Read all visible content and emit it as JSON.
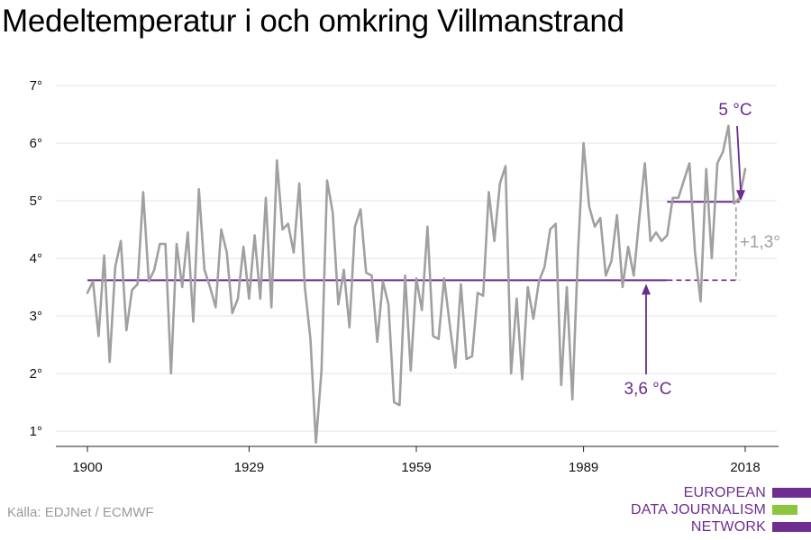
{
  "chart_data": {
    "type": "line",
    "title": "Medeltemperatur i och omkring Villmanstrand",
    "xlabel": "",
    "ylabel": "",
    "xlim": [
      1900,
      2018
    ],
    "ylim": [
      1,
      7
    ],
    "x_ticks": [
      "1900",
      "1929",
      "1959",
      "1989",
      "2018"
    ],
    "y_ticks": [
      "7°",
      "6°",
      "5°",
      "4°",
      "3°",
      "2°",
      "1°"
    ],
    "grid": true,
    "series": [
      {
        "color": "#a0a0a0",
        "x": [
          1900,
          1901,
          1902,
          1903,
          1904,
          1905,
          1906,
          1907,
          1908,
          1909,
          1910,
          1911,
          1912,
          1913,
          1914,
          1915,
          1916,
          1917,
          1918,
          1919,
          1920,
          1921,
          1922,
          1923,
          1924,
          1925,
          1926,
          1927,
          1928,
          1929,
          1930,
          1931,
          1932,
          1933,
          1934,
          1935,
          1936,
          1937,
          1938,
          1939,
          1940,
          1941,
          1942,
          1943,
          1944,
          1945,
          1946,
          1947,
          1948,
          1949,
          1950,
          1951,
          1952,
          1953,
          1954,
          1955,
          1956,
          1957,
          1958,
          1959,
          1960,
          1961,
          1962,
          1963,
          1964,
          1965,
          1966,
          1967,
          1968,
          1969,
          1970,
          1971,
          1972,
          1973,
          1974,
          1975,
          1976,
          1977,
          1978,
          1979,
          1980,
          1981,
          1982,
          1983,
          1984,
          1985,
          1986,
          1987,
          1988,
          1989,
          1990,
          1991,
          1992,
          1993,
          1994,
          1995,
          1996,
          1997,
          1998,
          1999,
          2000,
          2001,
          2002,
          2003,
          2004,
          2005,
          2006,
          2007,
          2008,
          2009,
          2010,
          2011,
          2012,
          2013,
          2014,
          2015,
          2016,
          2017,
          2018
        ],
        "values": [
          3.4,
          3.6,
          2.65,
          4.05,
          2.2,
          3.85,
          4.3,
          2.75,
          3.45,
          3.55,
          5.15,
          3.6,
          3.8,
          4.25,
          4.25,
          2.0,
          4.25,
          3.5,
          4.45,
          2.9,
          5.2,
          3.8,
          3.5,
          3.15,
          4.5,
          4.1,
          3.05,
          3.3,
          4.2,
          3.3,
          4.4,
          3.3,
          5.05,
          3.15,
          5.7,
          4.5,
          4.6,
          4.1,
          5.3,
          3.5,
          2.6,
          0.8,
          2.05,
          5.35,
          4.8,
          3.2,
          3.8,
          2.8,
          4.55,
          4.85,
          3.75,
          3.7,
          2.55,
          3.6,
          3.2,
          1.5,
          1.45,
          3.7,
          2.05,
          3.65,
          3.1,
          4.55,
          2.65,
          2.6,
          3.65,
          2.85,
          2.1,
          3.55,
          2.25,
          2.3,
          3.4,
          3.35,
          5.15,
          4.3,
          5.3,
          5.6,
          2.0,
          3.3,
          1.9,
          3.5,
          2.95,
          3.6,
          3.85,
          4.5,
          4.6,
          1.8,
          3.5,
          1.55,
          4.1,
          6.0,
          4.9,
          4.55,
          4.7,
          3.7,
          3.95,
          4.75,
          3.5,
          4.2,
          3.7,
          4.7,
          5.65,
          4.3,
          4.45,
          4.3,
          4.4,
          5.05,
          5.05,
          5.35,
          5.65,
          4.1,
          3.25,
          5.55,
          4.0,
          5.65,
          5.85,
          6.3,
          4.95,
          5.05,
          5.55
        ]
      }
    ],
    "reference_lines": [
      {
        "label": "3,6 °C",
        "value": 3.62,
        "x_start": 1900,
        "x_end": 2004,
        "dashed_x_end": 2017,
        "color": "#6a2c8e"
      },
      {
        "label": "5 °C",
        "value": 4.98,
        "x_start": 2004,
        "x_end": 2017,
        "color": "#6a2c8e"
      }
    ],
    "annotations": [
      {
        "text": "+1,3°",
        "color": "#a0a0a0"
      }
    ]
  },
  "source": "Källa: EDJNet / ECMWF",
  "logo": {
    "lines": [
      "EUROPEAN",
      "DATA JOURNALISM",
      "NETWORK"
    ],
    "colors": {
      "purple": "#6e2d8f",
      "green": "#8cc63f"
    }
  }
}
